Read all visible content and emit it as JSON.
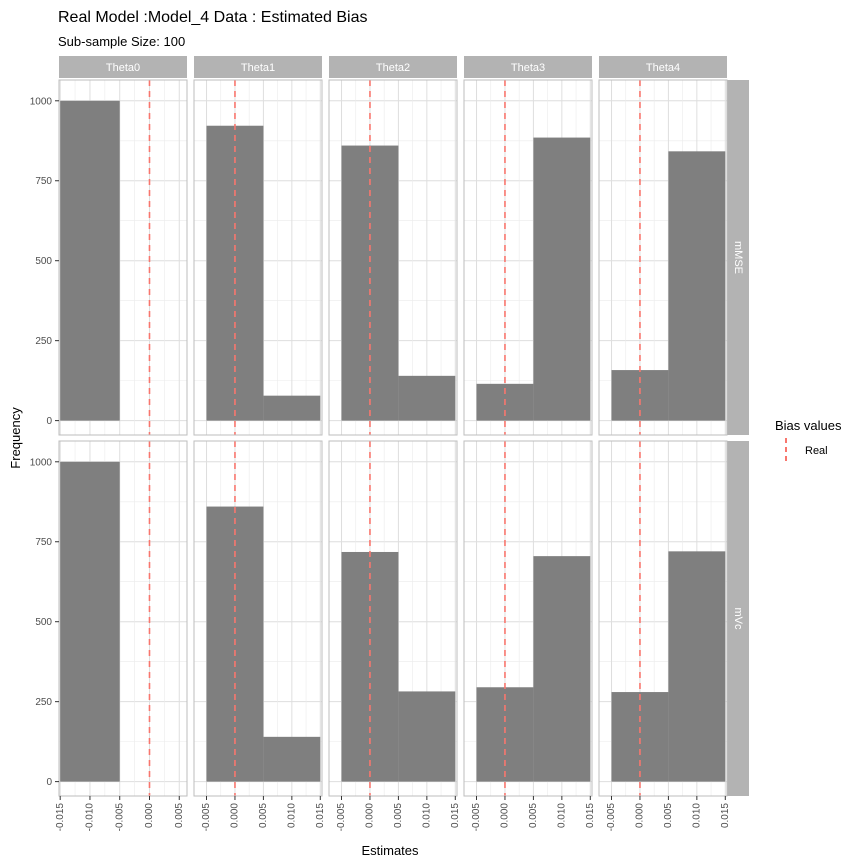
{
  "chart_data": {
    "type": "bar",
    "title": "Real Model :Model_4 Data : Estimated Bias",
    "subtitle": "Sub-sample Size: 100",
    "xlabel": "Estimates",
    "ylabel": "Frequency",
    "ylim": [
      -45,
      1065
    ],
    "yticks": [
      0,
      250,
      500,
      750,
      1000
    ],
    "grid": true,
    "legend": {
      "title": "Bias values",
      "position": "right",
      "entries": [
        {
          "label": "Real",
          "color": "#F8766D",
          "style": "dashed"
        }
      ]
    },
    "col_facets": [
      "Theta0",
      "Theta1",
      "Theta2",
      "Theta3",
      "Theta4"
    ],
    "row_facets": [
      "mMSE",
      "mVc"
    ],
    "bar_color": "#7F7F7F",
    "line_color": "#F8766D",
    "x_ticks": {
      "Theta0": [
        "-0.015",
        "-0.010",
        "-0.005",
        "0.000",
        "0.005"
      ],
      "Theta1": [
        "-0.005",
        "0.000",
        "0.005",
        "0.010",
        "0.015"
      ],
      "Theta2": [
        "-0.005",
        "0.000",
        "0.005",
        "0.010",
        "0.015"
      ],
      "Theta3": [
        "-0.005",
        "0.000",
        "0.005",
        "0.010",
        "0.015"
      ],
      "Theta4": [
        "-0.005",
        "0.000",
        "0.005",
        "0.010",
        "0.015"
      ]
    },
    "x_ranges": {
      "Theta0": [
        -0.0152,
        0.0063
      ],
      "Theta1": [
        -0.0072,
        0.0153
      ],
      "Theta2": [
        -0.0072,
        0.0153
      ],
      "Theta3": [
        -0.0072,
        0.0153
      ],
      "Theta4": [
        -0.0072,
        0.0153
      ]
    },
    "real_value": 0,
    "panels": [
      {
        "row": "mMSE",
        "col": "Theta0",
        "bins": [
          {
            "x0": -0.015,
            "x1": -0.005,
            "count": 1000
          }
        ]
      },
      {
        "row": "mMSE",
        "col": "Theta1",
        "bins": [
          {
            "x0": -0.005,
            "x1": 0.005,
            "count": 922
          },
          {
            "x0": 0.005,
            "x1": 0.015,
            "count": 78
          }
        ]
      },
      {
        "row": "mMSE",
        "col": "Theta2",
        "bins": [
          {
            "x0": -0.005,
            "x1": 0.005,
            "count": 860
          },
          {
            "x0": 0.005,
            "x1": 0.015,
            "count": 140
          }
        ]
      },
      {
        "row": "mMSE",
        "col": "Theta3",
        "bins": [
          {
            "x0": -0.005,
            "x1": 0.005,
            "count": 115
          },
          {
            "x0": 0.005,
            "x1": 0.015,
            "count": 885
          }
        ]
      },
      {
        "row": "mMSE",
        "col": "Theta4",
        "bins": [
          {
            "x0": -0.005,
            "x1": 0.005,
            "count": 158
          },
          {
            "x0": 0.005,
            "x1": 0.015,
            "count": 842
          }
        ]
      },
      {
        "row": "mVc",
        "col": "Theta0",
        "bins": [
          {
            "x0": -0.015,
            "x1": -0.005,
            "count": 1000
          }
        ]
      },
      {
        "row": "mVc",
        "col": "Theta1",
        "bins": [
          {
            "x0": -0.005,
            "x1": 0.005,
            "count": 860
          },
          {
            "x0": 0.005,
            "x1": 0.015,
            "count": 140
          }
        ]
      },
      {
        "row": "mVc",
        "col": "Theta2",
        "bins": [
          {
            "x0": -0.005,
            "x1": 0.005,
            "count": 718
          },
          {
            "x0": 0.005,
            "x1": 0.015,
            "count": 282
          }
        ]
      },
      {
        "row": "mVc",
        "col": "Theta3",
        "bins": [
          {
            "x0": -0.005,
            "x1": 0.005,
            "count": 295
          },
          {
            "x0": 0.005,
            "x1": 0.015,
            "count": 705
          }
        ]
      },
      {
        "row": "mVc",
        "col": "Theta4",
        "bins": [
          {
            "x0": -0.005,
            "x1": 0.005,
            "count": 280
          },
          {
            "x0": 0.005,
            "x1": 0.015,
            "count": 720
          }
        ]
      }
    ]
  }
}
